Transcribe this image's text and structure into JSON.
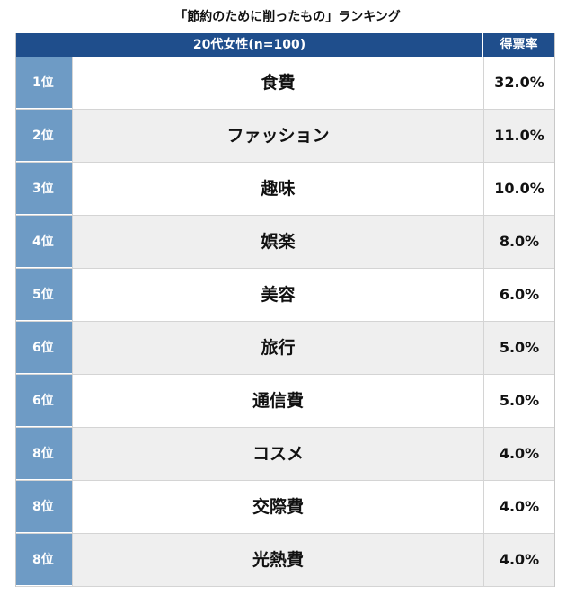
{
  "title": "「節約のために削ったもの」ランキング",
  "header": {
    "group": "20代女性(n=100)",
    "score": "得票率"
  },
  "colors": {
    "header_bg": "#1f4e8c",
    "rank_bg": "#6e9bc5",
    "row_alt": "#efefef"
  },
  "rows": [
    {
      "rank": "1位",
      "item": "食費",
      "score": "32.0%"
    },
    {
      "rank": "2位",
      "item": "ファッション",
      "score": "11.0%"
    },
    {
      "rank": "3位",
      "item": "趣味",
      "score": "10.0%"
    },
    {
      "rank": "4位",
      "item": "娯楽",
      "score": "8.0%"
    },
    {
      "rank": "5位",
      "item": "美容",
      "score": "6.0%"
    },
    {
      "rank": "6位",
      "item": "旅行",
      "score": "5.0%"
    },
    {
      "rank": "6位",
      "item": "通信費",
      "score": "5.0%"
    },
    {
      "rank": "8位",
      "item": "コスメ",
      "score": "4.0%"
    },
    {
      "rank": "8位",
      "item": "交際費",
      "score": "4.0%"
    },
    {
      "rank": "8位",
      "item": "光熱費",
      "score": "4.0%"
    }
  ]
}
